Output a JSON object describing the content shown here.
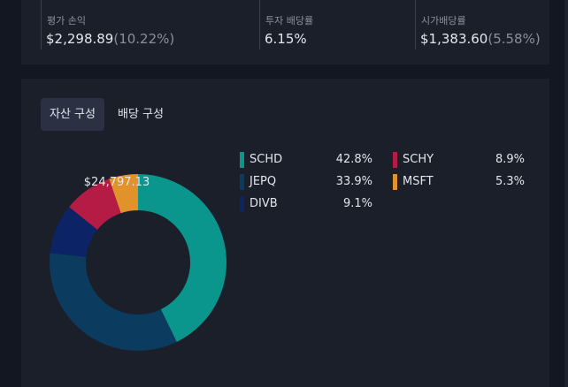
{
  "summary": {
    "eval_pl": {
      "label": "평가 손익",
      "value": "$2,298.89",
      "sub": "(10.22%)"
    },
    "dividend_rate": {
      "label": "투자 배당률",
      "value": "6.15%"
    },
    "market_dividend": {
      "label": "시가배당률",
      "value": "$1,383.60",
      "sub": "(5.58%)"
    }
  },
  "tabs": [
    {
      "label": "자산 구성",
      "active": true
    },
    {
      "label": "배당 구성",
      "active": false
    }
  ],
  "chart_data": {
    "type": "pie",
    "center_label": "$24,797.13",
    "categories": [
      "SCHD",
      "JEPQ",
      "DIVB",
      "SCHY",
      "MSFT"
    ],
    "values": [
      42.8,
      33.9,
      9.1,
      8.9,
      5.3
    ],
    "colors": [
      "#0a958d",
      "#0b3b5e",
      "#0c2466",
      "#b41b45",
      "#e2922a"
    ],
    "value_labels": [
      "42.8%",
      "33.9%",
      "9.1%",
      "8.9%",
      "5.3%"
    ]
  }
}
